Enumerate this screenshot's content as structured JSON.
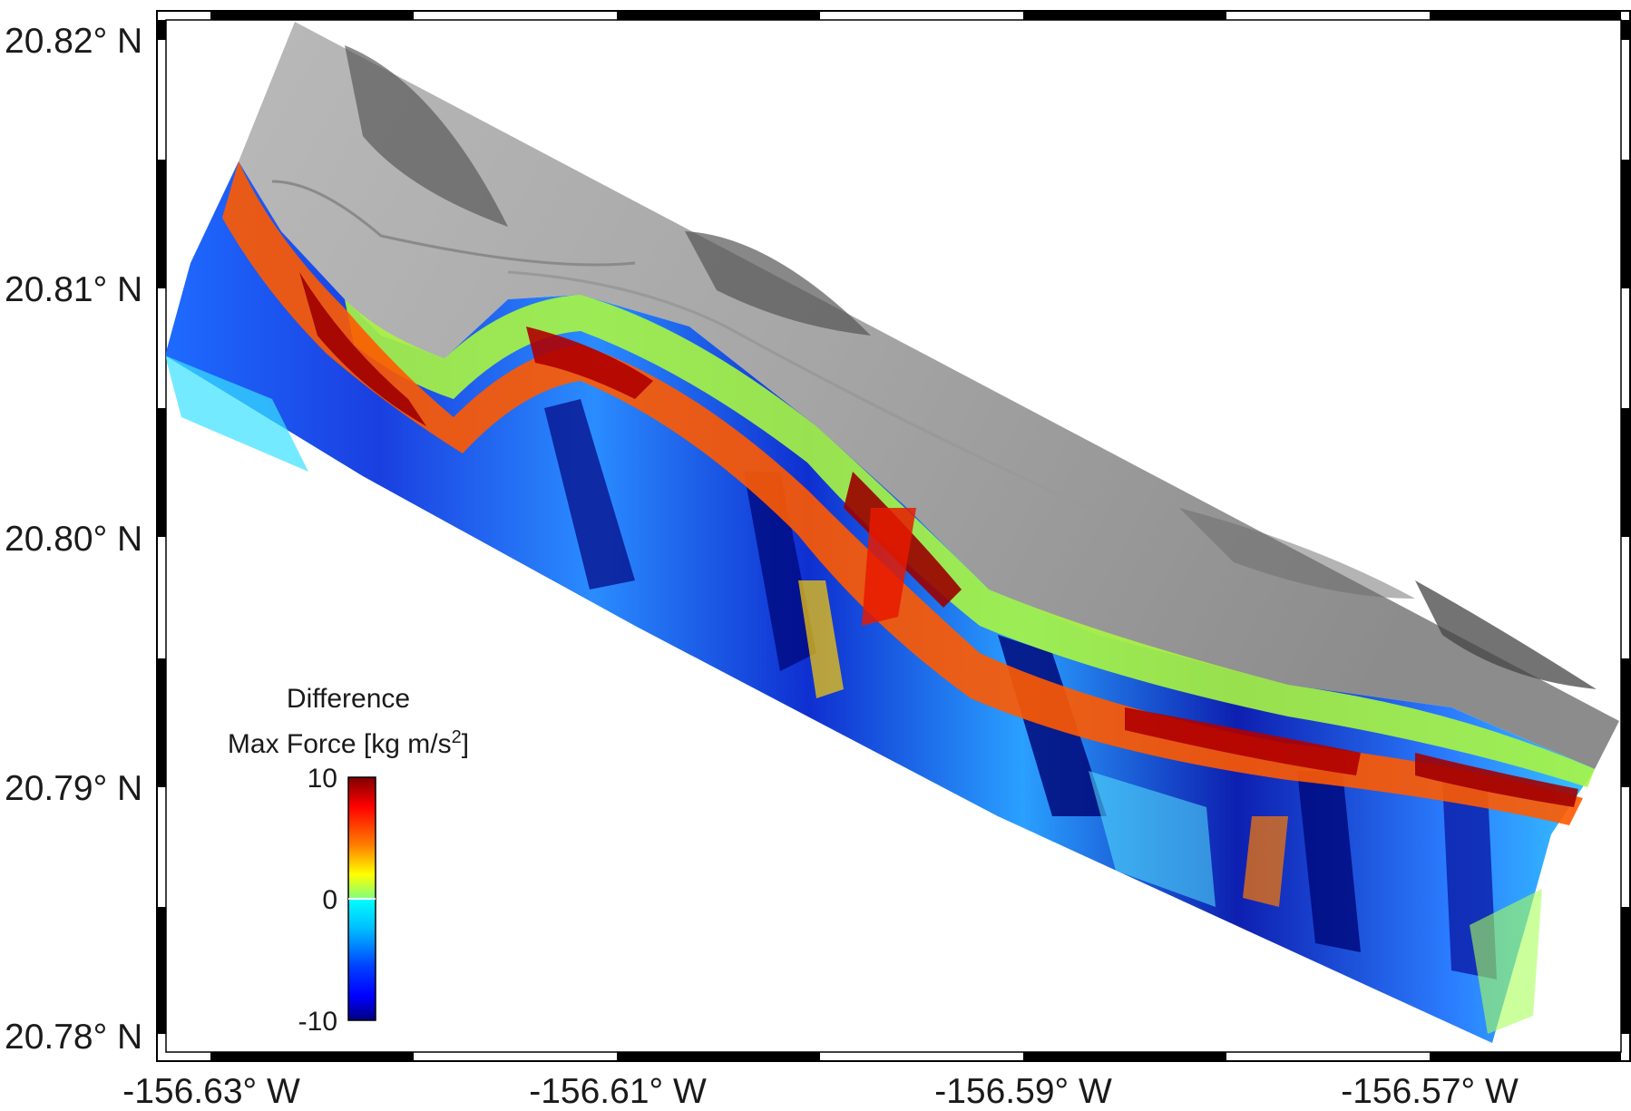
{
  "map": {
    "y_axis_labels": [
      "20.82° N",
      "20.81° N",
      "20.80° N",
      "20.79° N",
      "20.78° N"
    ],
    "x_axis_labels": [
      "-156.63° W",
      "-156.61° W",
      "-156.59° W",
      "-156.57° W"
    ]
  },
  "colorbar": {
    "title_line1": "Difference",
    "title_line2_prefix": "Max Force [kg m/s",
    "title_line2_sup": "2",
    "title_line2_suffix": "]",
    "ticks": [
      "10",
      "0",
      "-10"
    ],
    "range": [
      -10,
      10
    ],
    "colormap": "jet",
    "colors": [
      "#00007f",
      "#0000ff",
      "#007fff",
      "#00ffff",
      "#7fff7f",
      "#ffff00",
      "#ff7f00",
      "#ff0000",
      "#7f0000"
    ]
  },
  "layers": {
    "hillshade": "land-hillshade",
    "force_difference": "max-force-difference-raster"
  }
}
